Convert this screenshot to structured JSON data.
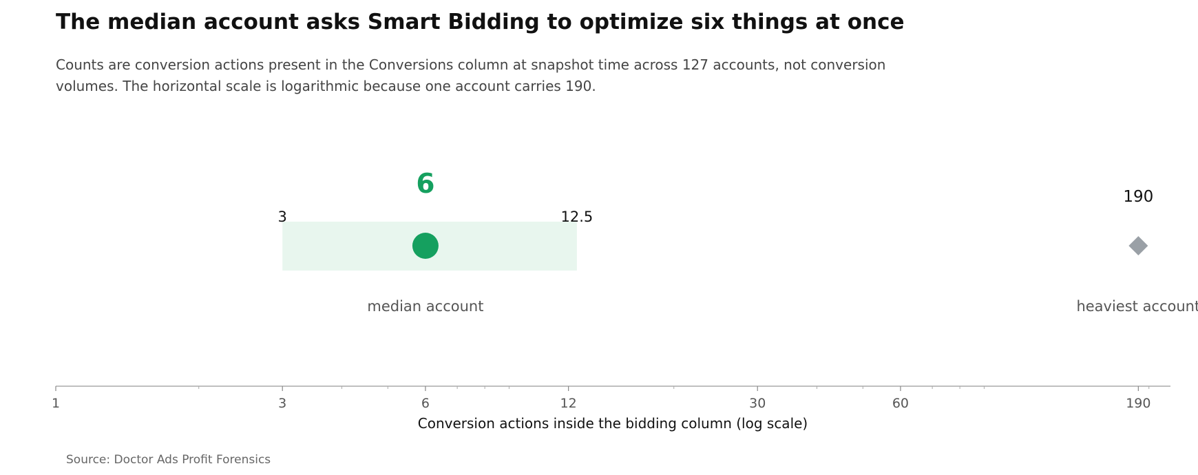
{
  "chart_data": {
    "type": "scatter",
    "title": "The median account asks Smart Bidding to optimize six things at once",
    "subtitle": "Counts are conversion actions present in the Conversions column at snapshot time across 127 accounts, not conversion volumes. The horizontal scale is logarithmic because one account carries 190.",
    "xlabel": "Conversion actions inside the bidding column (log scale)",
    "x_scale": "log",
    "xlim": [
      1,
      215
    ],
    "x_ticks": [
      1,
      3,
      6,
      12,
      30,
      60,
      190
    ],
    "x_tick_labels": [
      "1",
      "3",
      "6",
      "12",
      "30",
      "60",
      "190"
    ],
    "grid": false,
    "range": {
      "low": 3,
      "high": 12.5,
      "low_label": "3",
      "high_label": "12.5"
    },
    "points": [
      {
        "label": "median account",
        "value": 6,
        "value_label": "6",
        "marker": "circle",
        "color": "#15a05f"
      },
      {
        "label": "heaviest account",
        "value": 190,
        "value_label": "190",
        "marker": "diamond",
        "color": "#9aa0a6"
      }
    ],
    "range_color": "#e8f6ee",
    "axis_color": "#aaaaaa",
    "source": "Source: Doctor Ads Profit Forensics"
  }
}
